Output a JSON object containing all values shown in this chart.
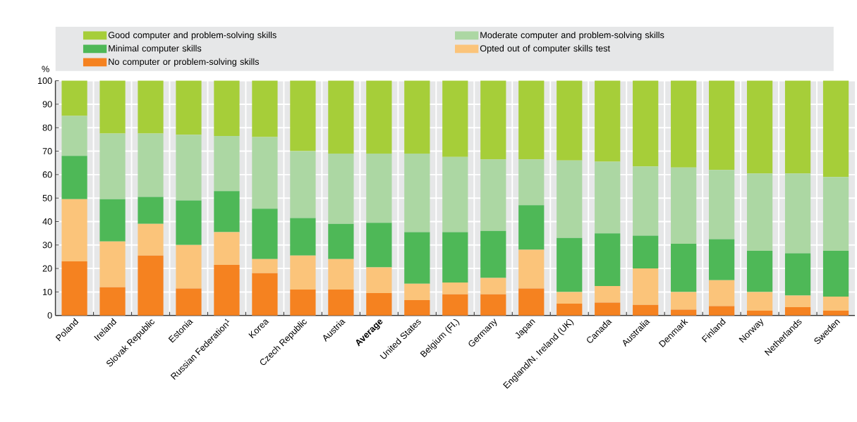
{
  "chart_data": {
    "type": "bar",
    "stacked": true,
    "ylabel": "%",
    "categories": [
      "Poland",
      "Ireland",
      "Slovak Republic",
      "Estonia",
      "Russian Federation$^{1}$",
      "Korea",
      "Czech Republic",
      "Austria",
      "Average",
      "United States",
      "Belgium (Fl.)",
      "Germany",
      "Japan",
      "England/N. Ireland (UK)",
      "Canada",
      "Australia",
      "Denmark",
      "Finland",
      "Norway",
      "Netherlands",
      "Sweden"
    ],
    "series": [
      {
        "name": "No computer or problem-solving skills",
        "color": "#f58220",
        "values": [
          23,
          12,
          25.5,
          11.5,
          21.5,
          18,
          11,
          11,
          9.5,
          6.5,
          9,
          9,
          11.5,
          5,
          5.5,
          4.5,
          2.5,
          4,
          2,
          3.5,
          2
        ]
      },
      {
        "name": "Opted out of computer skills test",
        "color": "#fbc47a",
        "values": [
          26.5,
          19.5,
          13.5,
          18.5,
          14,
          6,
          14.5,
          13,
          11,
          7,
          5,
          7,
          16.5,
          5,
          7,
          15.5,
          7.5,
          11,
          8,
          5,
          6
        ]
      },
      {
        "name": "Minimal computer skills",
        "color": "#4eb857",
        "values": [
          18.5,
          18,
          11.5,
          19,
          17.5,
          21.5,
          16,
          15,
          19,
          22,
          21.5,
          20,
          19,
          23,
          22.5,
          14,
          20.5,
          17.5,
          17.5,
          18,
          19.5
        ]
      },
      {
        "name": "Moderate computer and problem-solving skills",
        "color": "#acd7a3",
        "values": [
          17,
          28,
          27,
          28,
          23.5,
          30.5,
          28.5,
          30,
          29.5,
          33.5,
          32,
          30.5,
          19.5,
          33,
          30.5,
          29.5,
          32.5,
          29.5,
          33,
          34,
          31.5
        ]
      },
      {
        "name": "Good computer and problem-solving skills",
        "color": "#a6ce39",
        "values": [
          15,
          22.5,
          22.5,
          23,
          23.5,
          24,
          30,
          31,
          31,
          31,
          32.5,
          33.5,
          33.5,
          34,
          34.5,
          36.5,
          37,
          38,
          39.5,
          39.5,
          41
        ]
      }
    ],
    "ylim": [
      0,
      100
    ],
    "yticks": [
      0,
      10,
      20,
      30,
      40,
      50,
      60,
      70,
      80,
      90,
      100
    ],
    "grid": true,
    "legend": "top"
  }
}
